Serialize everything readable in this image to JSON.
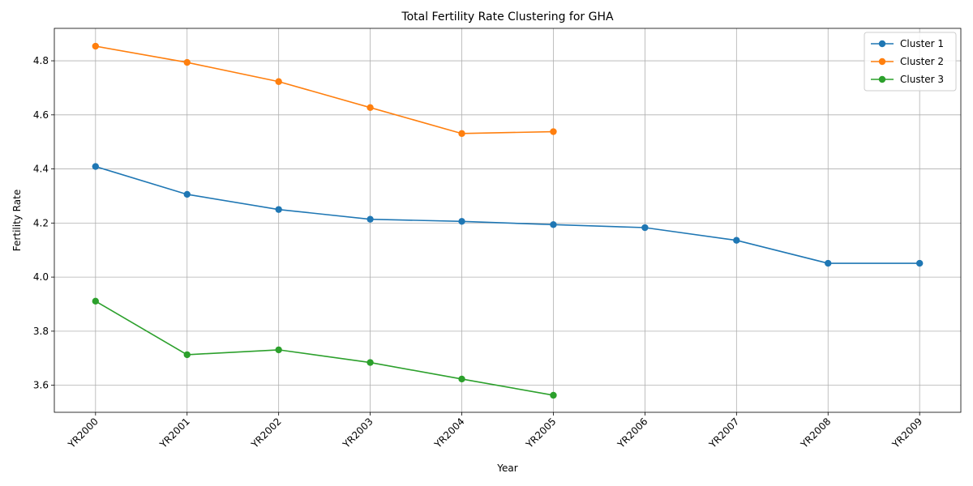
{
  "chart_data": {
    "type": "line",
    "title": "Total Fertility Rate Clustering for GHA",
    "xlabel": "Year",
    "ylabel": "Fertility Rate",
    "categories": [
      "YR2000",
      "YR2001",
      "YR2002",
      "YR2003",
      "YR2004",
      "YR2005",
      "YR2006",
      "YR2007",
      "YR2008",
      "YR2009"
    ],
    "ylim": [
      3.5,
      4.92
    ],
    "yticks": [
      "3.6",
      "3.8",
      "4.0",
      "4.2",
      "4.4",
      "4.6",
      "4.8"
    ],
    "grid": true,
    "legend_position": "top-right",
    "series": [
      {
        "name": "Cluster 1",
        "color": "#1f77b4",
        "values": [
          4.409,
          4.306,
          4.25,
          4.214,
          4.206,
          4.194,
          4.183,
          4.136,
          4.051,
          4.051
        ]
      },
      {
        "name": "Cluster 2",
        "color": "#ff7f0e",
        "values": [
          4.854,
          4.794,
          4.723,
          4.627,
          4.531,
          4.538,
          null,
          null,
          null,
          null
        ]
      },
      {
        "name": "Cluster 3",
        "color": "#2ca02c",
        "values": [
          3.911,
          3.713,
          3.731,
          3.684,
          3.623,
          3.563,
          null,
          null,
          null,
          null
        ]
      }
    ]
  }
}
